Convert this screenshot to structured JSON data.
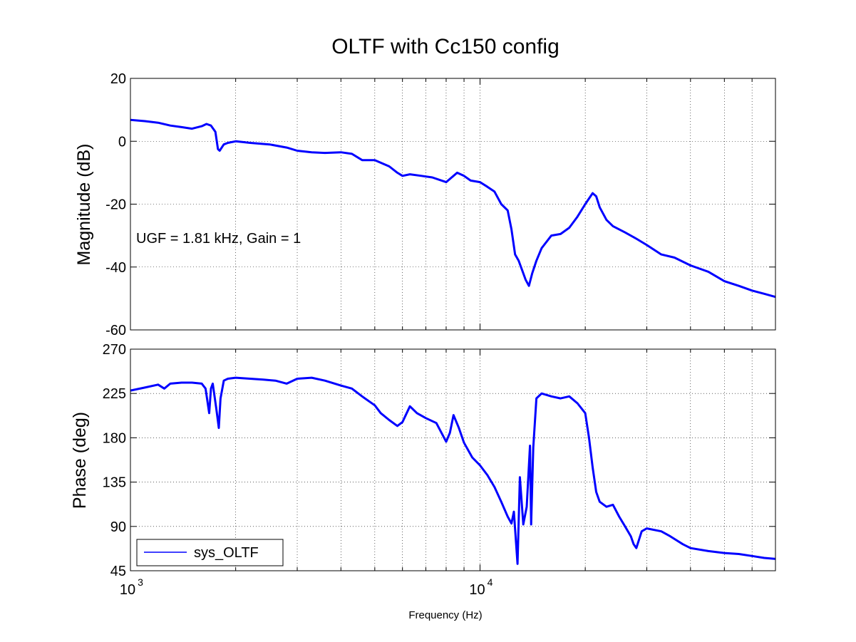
{
  "chart_data": [
    {
      "type": "line",
      "panel": "magnitude",
      "title": "OLTF with Cc150 config",
      "ylabel": "Magnitude (dB)",
      "xscale": "log",
      "xlim": [
        1000,
        70000
      ],
      "ylim": [
        -60,
        20
      ],
      "yticks": [
        "20",
        "0",
        "-20",
        "-40",
        "-60"
      ],
      "grid": true,
      "annotation": "UGF = 1.81 kHz, Gain = 1",
      "color": "#0000ff",
      "series": [
        {
          "x": [
            1000,
            1100,
            1200,
            1300,
            1400,
            1500,
            1600,
            1650,
            1700,
            1750,
            1780,
            1800,
            1850,
            1900,
            2000,
            2200,
            2500,
            2800,
            3000,
            3300,
            3600,
            4000,
            4300,
            4600,
            5000,
            5500,
            5800,
            6000,
            6300,
            6800,
            7300,
            8000,
            8400,
            8600,
            9000,
            9400,
            10000,
            10500,
            11000,
            11500,
            12000,
            12300,
            12600,
            12900,
            13200,
            13500,
            13800,
            14100,
            14500,
            15000,
            16000,
            17000,
            18000,
            19000,
            20000,
            21000,
            21500,
            22000,
            23000,
            24000,
            26000,
            28000,
            30000,
            33000,
            36000,
            40000,
            45000,
            50000,
            55000,
            60000,
            65000,
            70000
          ],
          "y": [
            6.8,
            6.4,
            5.9,
            5.0,
            4.5,
            4.0,
            4.8,
            5.5,
            5.0,
            3.0,
            -2.5,
            -3.0,
            -1.0,
            -0.5,
            0.0,
            -0.5,
            -1.0,
            -2.0,
            -3.0,
            -3.5,
            -3.7,
            -3.5,
            -4.0,
            -6.0,
            -6.0,
            -8.0,
            -10.0,
            -11.0,
            -10.5,
            -11.0,
            -11.5,
            -13.0,
            -11.0,
            -10.0,
            -11.0,
            -12.5,
            -13.0,
            -14.5,
            -16.0,
            -20.0,
            -22.0,
            -28.0,
            -36.0,
            -38.0,
            -41.0,
            -44.0,
            -46.0,
            -42.0,
            -38.0,
            -34.0,
            -30.0,
            -29.5,
            -27.5,
            -24.0,
            -20.0,
            -16.5,
            -17.5,
            -21.0,
            -25.0,
            -27.0,
            -29.0,
            -31.0,
            -33.0,
            -36.0,
            -37.0,
            -39.5,
            -41.5,
            -44.5,
            -46.0,
            -47.5,
            -48.5,
            -49.5
          ]
        }
      ]
    },
    {
      "type": "line",
      "panel": "phase",
      "ylabel": "Phase (deg)",
      "xlabel": "Frequency  (Hz)",
      "xscale": "log",
      "xlim": [
        1000,
        70000
      ],
      "ylim": [
        45,
        270
      ],
      "yticks": [
        "270",
        "225",
        "180",
        "135",
        "90",
        "45"
      ],
      "xticks": [
        {
          "base": "10",
          "exp": "3",
          "value": 1000
        },
        {
          "base": "10",
          "exp": "4",
          "value": 10000
        }
      ],
      "grid": true,
      "legend": {
        "position": "bottom-left",
        "entries": [
          "sys_OLTF"
        ]
      },
      "color": "#0000ff",
      "series": [
        {
          "name": "sys_OLTF",
          "x": [
            1000,
            1100,
            1200,
            1250,
            1300,
            1400,
            1500,
            1600,
            1640,
            1680,
            1700,
            1720,
            1760,
            1790,
            1810,
            1850,
            1900,
            2000,
            2200,
            2400,
            2600,
            2800,
            3000,
            3300,
            3600,
            4000,
            4300,
            4600,
            5000,
            5200,
            5500,
            5800,
            6000,
            6300,
            6600,
            7000,
            7500,
            8000,
            8200,
            8400,
            8700,
            9000,
            9500,
            10000,
            10500,
            11000,
            11500,
            12000,
            12300,
            12500,
            12800,
            13000,
            13300,
            13600,
            13900,
            14000,
            14200,
            14500,
            15000,
            16000,
            17000,
            18000,
            19000,
            20000,
            20500,
            21000,
            21500,
            22000,
            23000,
            24000,
            25000,
            26000,
            27000,
            27500,
            28000,
            29000,
            30000,
            33000,
            35000,
            38000,
            40000,
            45000,
            50000,
            55000,
            60000,
            65000,
            70000
          ],
          "y": [
            228,
            231,
            234,
            230,
            235,
            236,
            236,
            235,
            230,
            205,
            230,
            235,
            210,
            190,
            220,
            238,
            240,
            241,
            240,
            239,
            238,
            235,
            240,
            241,
            238,
            233,
            230,
            222,
            213,
            205,
            198,
            192,
            196,
            212,
            205,
            200,
            195,
            176,
            185,
            203,
            190,
            175,
            160,
            152,
            142,
            130,
            115,
            100,
            93,
            105,
            52,
            140,
            92,
            110,
            172,
            92,
            170,
            220,
            225,
            222,
            220,
            222,
            215,
            205,
            180,
            150,
            125,
            115,
            110,
            112,
            100,
            90,
            80,
            72,
            68,
            85,
            88,
            85,
            80,
            72,
            68,
            65,
            63,
            62,
            60,
            58,
            57
          ]
        }
      ]
    }
  ]
}
